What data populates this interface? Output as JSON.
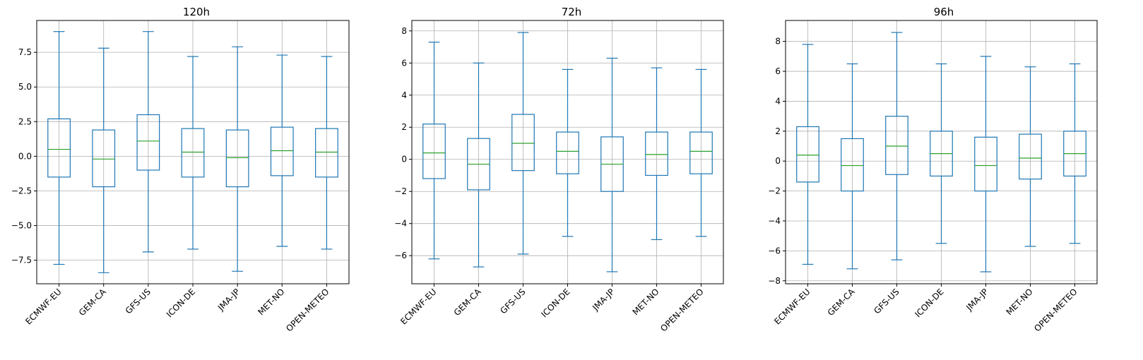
{
  "colors": {
    "box": "#1f77b4",
    "median": "#2ca02c",
    "grid": "#b0b0b0",
    "axis": "#000000"
  },
  "chart_data": [
    {
      "type": "box",
      "title": "120h",
      "xlabel": "",
      "ylabel": "",
      "categories": [
        "ECMWF-EU",
        "GEM-CA",
        "GFS-US",
        "ICON-DE",
        "JMA-JP",
        "MET-NO",
        "OPEN-METEO"
      ],
      "ylim": [
        -9.2,
        9.8
      ],
      "yticks": [
        -7.5,
        -5.0,
        -2.5,
        0.0,
        2.5,
        5.0,
        7.5
      ],
      "ytick_labels": [
        "−7.5",
        "−5.0",
        "−2.5",
        "0.0",
        "2.5",
        "5.0",
        "7.5"
      ],
      "grid": true,
      "boxes": [
        {
          "whislo": -7.8,
          "q1": -1.5,
          "med": 0.5,
          "q3": 2.7,
          "whishi": 9.0
        },
        {
          "whislo": -8.4,
          "q1": -2.2,
          "med": -0.2,
          "q3": 1.9,
          "whishi": 7.8
        },
        {
          "whislo": -6.9,
          "q1": -1.0,
          "med": 1.1,
          "q3": 3.0,
          "whishi": 9.0
        },
        {
          "whislo": -6.7,
          "q1": -1.5,
          "med": 0.3,
          "q3": 2.0,
          "whishi": 7.2
        },
        {
          "whislo": -8.3,
          "q1": -2.2,
          "med": -0.1,
          "q3": 1.9,
          "whishi": 7.9
        },
        {
          "whislo": -6.5,
          "q1": -1.4,
          "med": 0.4,
          "q3": 2.1,
          "whishi": 7.3
        },
        {
          "whislo": -6.7,
          "q1": -1.5,
          "med": 0.3,
          "q3": 2.0,
          "whishi": 7.2
        }
      ]
    },
    {
      "type": "box",
      "title": "72h",
      "xlabel": "",
      "ylabel": "",
      "categories": [
        "ECMWF-EU",
        "GEM-CA",
        "GFS-US",
        "ICON-DE",
        "JMA-JP",
        "MET-NO",
        "OPEN-METEO"
      ],
      "ylim": [
        -7.75,
        8.65
      ],
      "yticks": [
        -6,
        -4,
        -2,
        0,
        2,
        4,
        6,
        8
      ],
      "ytick_labels": [
        "−6",
        "−4",
        "−2",
        "0",
        "2",
        "4",
        "6",
        "8"
      ],
      "grid": true,
      "boxes": [
        {
          "whislo": -6.2,
          "q1": -1.2,
          "med": 0.4,
          "q3": 2.2,
          "whishi": 7.3
        },
        {
          "whislo": -6.7,
          "q1": -1.9,
          "med": -0.3,
          "q3": 1.3,
          "whishi": 6.0
        },
        {
          "whislo": -5.9,
          "q1": -0.7,
          "med": 1.0,
          "q3": 2.8,
          "whishi": 7.9
        },
        {
          "whislo": -4.8,
          "q1": -0.9,
          "med": 0.5,
          "q3": 1.7,
          "whishi": 5.6
        },
        {
          "whislo": -7.0,
          "q1": -2.0,
          "med": -0.3,
          "q3": 1.4,
          "whishi": 6.3
        },
        {
          "whislo": -5.0,
          "q1": -1.0,
          "med": 0.3,
          "q3": 1.7,
          "whishi": 5.7
        },
        {
          "whislo": -4.8,
          "q1": -0.9,
          "med": 0.5,
          "q3": 1.7,
          "whishi": 5.6
        }
      ]
    },
    {
      "type": "box",
      "title": "96h",
      "xlabel": "",
      "ylabel": "",
      "categories": [
        "ECMWF-EU",
        "GEM-CA",
        "GFS-US",
        "ICON-DE",
        "JMA-JP",
        "MET-NO",
        "OPEN-METEO"
      ],
      "ylim": [
        -8.2,
        9.4
      ],
      "yticks": [
        -8,
        -6,
        -4,
        -2,
        0,
        2,
        4,
        6,
        8
      ],
      "ytick_labels": [
        "−8",
        "−6",
        "−4",
        "−2",
        "0",
        "2",
        "4",
        "6",
        "8"
      ],
      "grid": true,
      "boxes": [
        {
          "whislo": -6.9,
          "q1": -1.4,
          "med": 0.4,
          "q3": 2.3,
          "whishi": 7.8
        },
        {
          "whislo": -7.2,
          "q1": -2.0,
          "med": -0.3,
          "q3": 1.5,
          "whishi": 6.5
        },
        {
          "whislo": -6.6,
          "q1": -0.9,
          "med": 1.0,
          "q3": 3.0,
          "whishi": 8.6
        },
        {
          "whislo": -5.5,
          "q1": -1.0,
          "med": 0.5,
          "q3": 2.0,
          "whishi": 6.5
        },
        {
          "whislo": -7.4,
          "q1": -2.0,
          "med": -0.3,
          "q3": 1.6,
          "whishi": 7.0
        },
        {
          "whislo": -5.7,
          "q1": -1.2,
          "med": 0.2,
          "q3": 1.8,
          "whishi": 6.3
        },
        {
          "whislo": -5.5,
          "q1": -1.0,
          "med": 0.5,
          "q3": 2.0,
          "whishi": 6.5
        }
      ]
    }
  ]
}
